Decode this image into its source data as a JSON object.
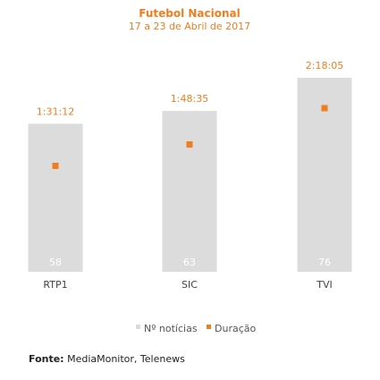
{
  "chart_data": {
    "type": "bar",
    "title": "Futebol Nacional",
    "subtitle": "17 a 23 de Abril de 2017",
    "categories": [
      "RTP1",
      "SIC",
      "TVI"
    ],
    "series": [
      {
        "name": "Nº notícias",
        "values": [
          58,
          63,
          76
        ],
        "color": "#dcdcdc"
      },
      {
        "name": "Duração",
        "values": [
          "1:31:12",
          "1:48:35",
          "2:18:05"
        ],
        "seconds": [
          5472,
          6515,
          8285
        ],
        "color": "#f07d1e"
      }
    ],
    "legend_position": "bottom",
    "grid": false
  },
  "source": {
    "label": "Fonte:",
    "text": "MediaMonitor, Telenews"
  }
}
